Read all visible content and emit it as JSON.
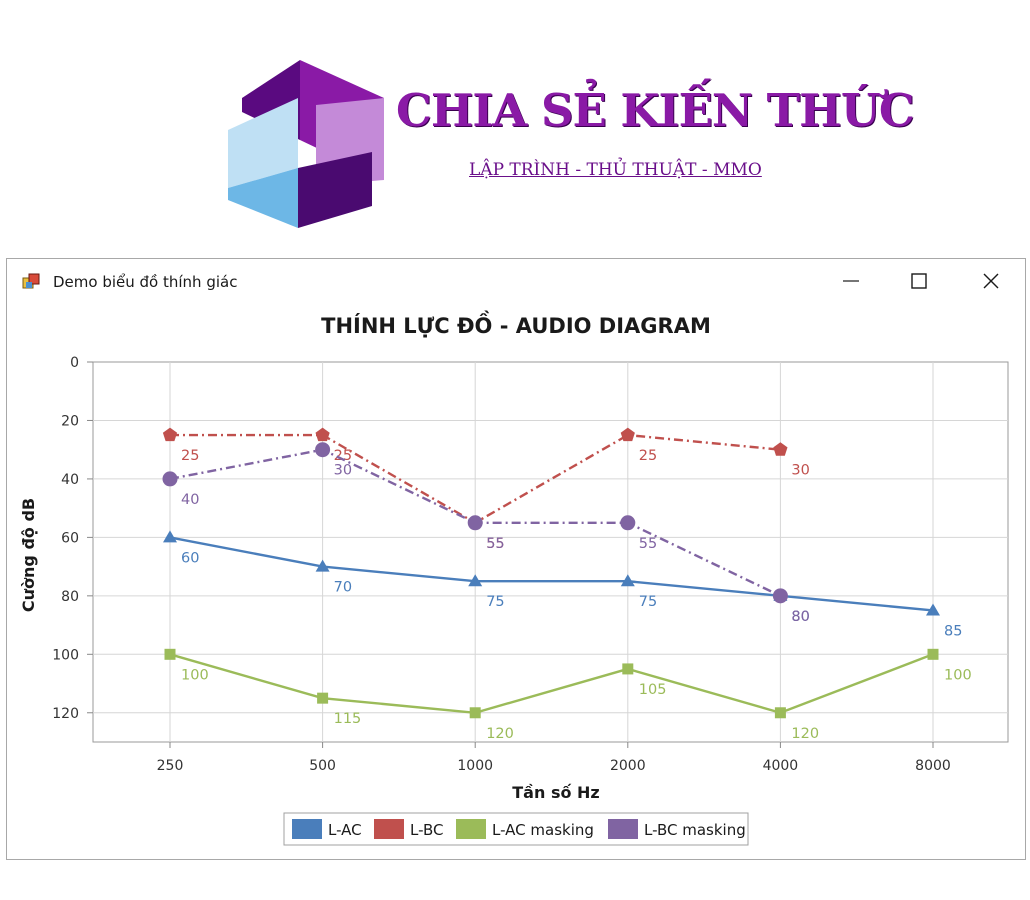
{
  "brand": {
    "title": "CHIA SẺ KIẾN THỨC",
    "subtitle": "LẬP TRÌNH - THỦ THUẬT - MMO"
  },
  "window": {
    "title": "Demo biểu đồ thính giác",
    "icon": "app-icon",
    "controls": [
      "minimize-icon",
      "maximize-icon",
      "close-icon"
    ]
  },
  "chart_data": {
    "type": "line",
    "title": "THÍNH LỰC ĐỒ - AUDIO DIAGRAM",
    "xlabel": "Tần số Hz",
    "ylabel": "Cường độ dB",
    "categories": [
      "250",
      "500",
      "1000",
      "2000",
      "4000",
      "8000"
    ],
    "y_ticks": [
      "0",
      "20",
      "40",
      "60",
      "80",
      "100",
      "120"
    ],
    "ylim": [
      0,
      130
    ],
    "y_inverted": true,
    "grid": true,
    "legend_position": "bottom",
    "series": [
      {
        "name": "L-AC",
        "color": "#4a7ebb",
        "marker": "triangle",
        "dash": "solid",
        "values": [
          60,
          70,
          75,
          75,
          80,
          85
        ],
        "labels": [
          "60",
          "70",
          "75",
          "75",
          "80",
          "85"
        ]
      },
      {
        "name": "L-BC",
        "color": "#c0504d",
        "marker": "pentagon",
        "dash": "dashdot",
        "values": [
          25,
          25,
          55,
          25,
          30,
          null
        ],
        "labels": [
          "25",
          "25",
          "55",
          "25",
          "30",
          ""
        ]
      },
      {
        "name": "L-AC masking",
        "color": "#9bbb59",
        "marker": "square",
        "dash": "solid",
        "values": [
          100,
          115,
          120,
          105,
          120,
          100
        ],
        "labels": [
          "100",
          "115",
          "120",
          "105",
          "120",
          "100"
        ]
      },
      {
        "name": "L-BC masking",
        "color": "#8064a2",
        "marker": "circle",
        "dash": "dashdot",
        "values": [
          40,
          30,
          55,
          55,
          80,
          null
        ],
        "labels": [
          "40",
          "30",
          "55",
          "55",
          "80",
          ""
        ]
      }
    ]
  }
}
